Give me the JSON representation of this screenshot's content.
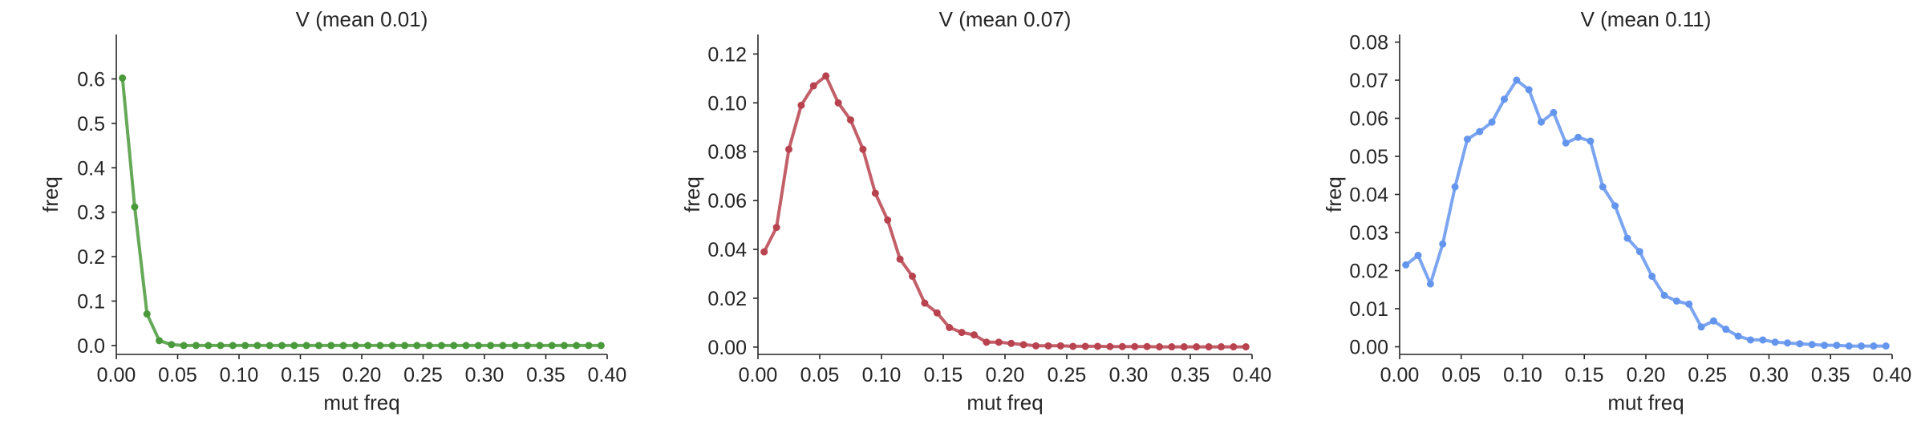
{
  "chart_data": [
    {
      "type": "line",
      "title": "V (mean 0.01)",
      "xlabel": "mut freq",
      "ylabel": "freq",
      "xlim": [
        0.0,
        0.4
      ],
      "ylim": [
        -0.02,
        0.7
      ],
      "xticks": [
        "0.00",
        "0.05",
        "0.10",
        "0.15",
        "0.20",
        "0.25",
        "0.30",
        "0.35",
        "0.40"
      ],
      "yticks": [
        "0.0",
        "0.1",
        "0.2",
        "0.3",
        "0.4",
        "0.5",
        "0.6"
      ],
      "color": "#4a9a3c",
      "grid": false,
      "x": [
        0.005,
        0.015,
        0.025,
        0.035,
        0.045,
        0.055,
        0.065,
        0.075,
        0.085,
        0.095,
        0.105,
        0.115,
        0.125,
        0.135,
        0.145,
        0.155,
        0.165,
        0.175,
        0.185,
        0.195,
        0.205,
        0.215,
        0.225,
        0.235,
        0.245,
        0.255,
        0.265,
        0.275,
        0.285,
        0.295,
        0.305,
        0.315,
        0.325,
        0.335,
        0.345,
        0.355,
        0.365,
        0.375,
        0.385,
        0.395
      ],
      "y": [
        0.602,
        0.312,
        0.071,
        0.011,
        0.002,
        0.0,
        0.0,
        0.0,
        0.0,
        0.0,
        0.0,
        0.0,
        0.0,
        0.0,
        0.0,
        0.0,
        0.0,
        0.0,
        0.0,
        0.0,
        0.0,
        0.0,
        0.0,
        0.0,
        0.0,
        0.0,
        0.0,
        0.0,
        0.0,
        0.0,
        0.0,
        0.0,
        0.0,
        0.0,
        0.0,
        0.0,
        0.0,
        0.0,
        0.0,
        0.0
      ]
    },
    {
      "type": "line",
      "title": "V (mean 0.07)",
      "xlabel": "mut freq",
      "ylabel": "freq",
      "xlim": [
        0.0,
        0.4
      ],
      "ylim": [
        -0.003,
        0.128
      ],
      "xticks": [
        "0.00",
        "0.05",
        "0.10",
        "0.15",
        "0.20",
        "0.25",
        "0.30",
        "0.35",
        "0.40"
      ],
      "yticks": [
        "0.00",
        "0.02",
        "0.04",
        "0.06",
        "0.08",
        "0.10",
        "0.12"
      ],
      "color": "#b8434f",
      "grid": false,
      "x": [
        0.005,
        0.015,
        0.025,
        0.035,
        0.045,
        0.055,
        0.065,
        0.075,
        0.085,
        0.095,
        0.105,
        0.115,
        0.125,
        0.135,
        0.145,
        0.155,
        0.165,
        0.175,
        0.185,
        0.195,
        0.205,
        0.215,
        0.225,
        0.235,
        0.245,
        0.255,
        0.265,
        0.275,
        0.285,
        0.295,
        0.305,
        0.315,
        0.325,
        0.335,
        0.345,
        0.355,
        0.365,
        0.375,
        0.385,
        0.395
      ],
      "y": [
        0.039,
        0.049,
        0.081,
        0.099,
        0.107,
        0.111,
        0.1,
        0.093,
        0.081,
        0.063,
        0.052,
        0.036,
        0.029,
        0.018,
        0.014,
        0.008,
        0.006,
        0.005,
        0.002,
        0.002,
        0.0015,
        0.001,
        0.0005,
        0.0005,
        0.0005,
        0.0003,
        0.0003,
        0.0003,
        0.0002,
        0.0002,
        0.0002,
        0.0002,
        0.0001,
        0.0001,
        0.0001,
        0.0001,
        0.0001,
        0.0001,
        0.0001,
        0.0001
      ]
    },
    {
      "type": "line",
      "title": "V (mean 0.11)",
      "xlabel": "mut freq",
      "ylabel": "freq",
      "xlim": [
        0.0,
        0.4
      ],
      "ylim": [
        -0.002,
        0.082
      ],
      "xticks": [
        "0.00",
        "0.05",
        "0.10",
        "0.15",
        "0.20",
        "0.25",
        "0.30",
        "0.35",
        "0.40"
      ],
      "yticks": [
        "0.00",
        "0.01",
        "0.02",
        "0.03",
        "0.04",
        "0.05",
        "0.06",
        "0.07",
        "0.08"
      ],
      "color": "#6495ed",
      "grid": false,
      "x": [
        0.005,
        0.015,
        0.025,
        0.035,
        0.045,
        0.055,
        0.065,
        0.075,
        0.085,
        0.095,
        0.105,
        0.115,
        0.125,
        0.135,
        0.145,
        0.155,
        0.165,
        0.175,
        0.185,
        0.195,
        0.205,
        0.215,
        0.225,
        0.235,
        0.245,
        0.255,
        0.265,
        0.275,
        0.285,
        0.295,
        0.305,
        0.315,
        0.325,
        0.335,
        0.345,
        0.355,
        0.365,
        0.375,
        0.385,
        0.395
      ],
      "y": [
        0.0215,
        0.024,
        0.0165,
        0.027,
        0.042,
        0.0545,
        0.0565,
        0.059,
        0.065,
        0.07,
        0.0675,
        0.059,
        0.0615,
        0.0535,
        0.055,
        0.054,
        0.042,
        0.037,
        0.0285,
        0.025,
        0.0185,
        0.0135,
        0.012,
        0.0112,
        0.0052,
        0.0068,
        0.0046,
        0.0028,
        0.0018,
        0.0018,
        0.0012,
        0.001,
        0.0008,
        0.0006,
        0.0004,
        0.0004,
        0.0002,
        0.0002,
        0.0002,
        0.0002
      ]
    }
  ]
}
